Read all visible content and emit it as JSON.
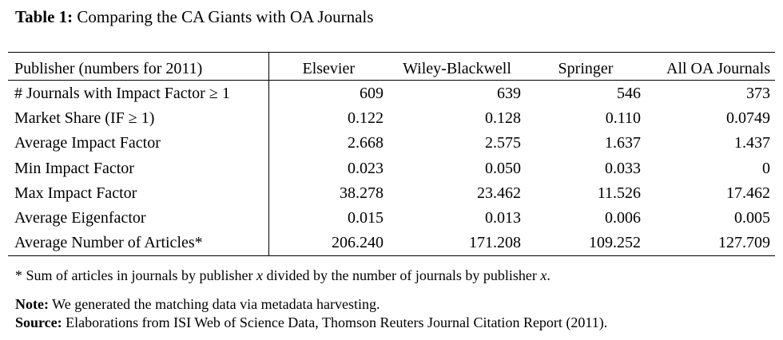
{
  "caption": {
    "label": "Table 1:",
    "text": "Comparing the CA Giants with OA Journals"
  },
  "table": {
    "header": {
      "metric": "Publisher (numbers for 2011)",
      "publishers": [
        "Elsevier",
        "Wiley-Blackwell",
        "Springer",
        "All OA Journals"
      ]
    },
    "rows": [
      {
        "metric": "# Journals with Impact Factor ≥ 1",
        "values": [
          "609",
          "639",
          "546",
          "373"
        ]
      },
      {
        "metric": "Market Share (IF ≥ 1)",
        "values": [
          "0.122",
          "0.128",
          "0.110",
          "0.0749"
        ]
      },
      {
        "metric": "Average Impact Factor",
        "values": [
          "2.668",
          "2.575",
          "1.637",
          "1.437"
        ]
      },
      {
        "metric": "Min Impact Factor",
        "values": [
          "0.023",
          "0.050",
          "0.033",
          "0"
        ]
      },
      {
        "metric": "Max Impact Factor",
        "values": [
          "38.278",
          "23.462",
          "11.526",
          "17.462"
        ]
      },
      {
        "metric": "Average Eigenfactor",
        "values": [
          "0.015",
          "0.013",
          "0.006",
          "0.005"
        ]
      },
      {
        "metric": "Average Number of Articles*",
        "values": [
          "206.240",
          "171.208",
          "109.252",
          "127.709"
        ]
      }
    ]
  },
  "footnote": {
    "part1": "* Sum of articles in journals by publisher ",
    "var1": "x",
    "part2": " divided by the number of journals by publisher ",
    "var2": "x",
    "part3": "."
  },
  "note": {
    "label": "Note:",
    "text": " We generated the matching data via metadata harvesting."
  },
  "source": {
    "label": "Source:",
    "text": " Elaborations from ISI Web of Science Data, Thomson Reuters Journal Citation Report (2011)."
  }
}
